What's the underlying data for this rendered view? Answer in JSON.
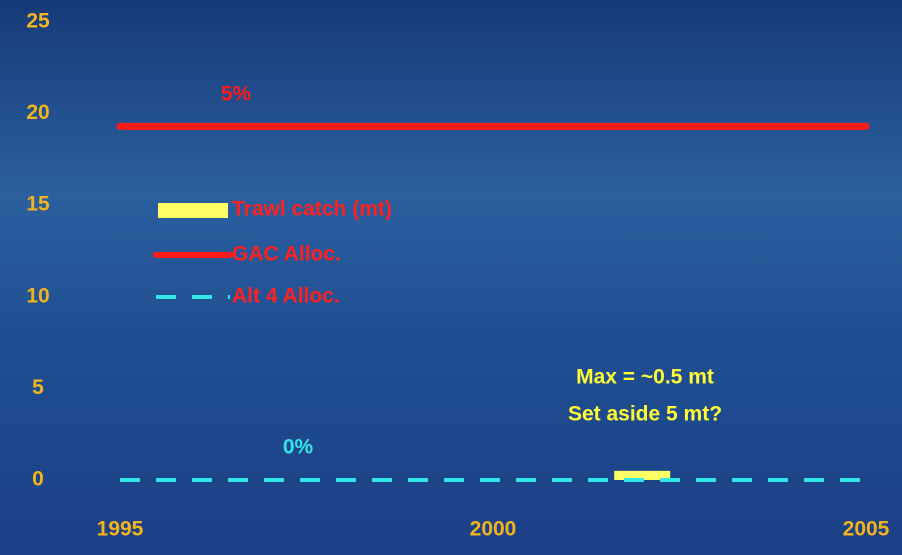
{
  "chart_data": {
    "type": "line",
    "xlim": [
      1995,
      2005
    ],
    "xticks": [
      1995,
      2000,
      2005
    ],
    "ylim": [
      0,
      25
    ],
    "yticks": [
      0,
      5,
      10,
      15,
      20,
      25
    ],
    "series": [
      {
        "name": "Trawl catch (mt)",
        "kind": "bar",
        "color": "#ffff66",
        "x": [
          2002
        ],
        "values": [
          0.5
        ]
      },
      {
        "name": "GAC Alloc.",
        "kind": "line",
        "color": "#ff1a1a",
        "dashed": false,
        "x": [
          1995,
          2005
        ],
        "values": [
          19.3,
          19.3
        ]
      },
      {
        "name": "Alt 4 Alloc.",
        "kind": "line",
        "color": "#33e6e6",
        "dashed": true,
        "x": [
          1995,
          2005
        ],
        "values": [
          0,
          0
        ]
      }
    ],
    "annotations": [
      {
        "text": "5%",
        "color": "#ff1a1a"
      },
      {
        "text": "0%",
        "color": "#33e6e6"
      },
      {
        "text": "Max = ~0.5 mt",
        "color": "#ffff33"
      },
      {
        "text": "Set aside 5 mt?",
        "color": "#ffff33"
      }
    ]
  }
}
